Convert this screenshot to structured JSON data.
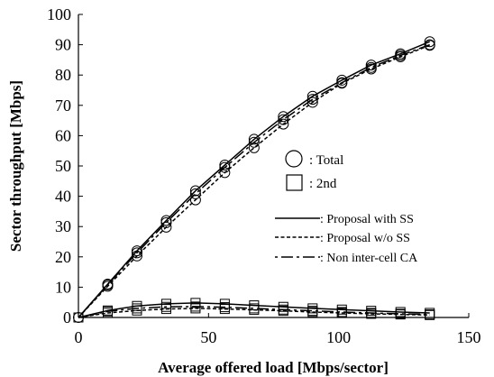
{
  "chart_data": {
    "type": "line",
    "title": "",
    "xlabel": "Average offered load [Mbps/sector]",
    "ylabel": "Sector throughput  [Mbps]",
    "xlim": [
      0,
      150
    ],
    "ylim": [
      0,
      100
    ],
    "xticks": [
      "0",
      "50",
      "100",
      "150"
    ],
    "yticks": [
      "0",
      "10",
      "20",
      "30",
      "40",
      "50",
      "60",
      "70",
      "80",
      "90",
      "100"
    ],
    "grid": false,
    "x": [
      0,
      11.25,
      22.5,
      33.75,
      45,
      56.25,
      67.5,
      78.75,
      90,
      101.25,
      112.5,
      123.75,
      135
    ],
    "marker_legend": [
      {
        "marker": "circle",
        "label": ": Total"
      },
      {
        "marker": "square",
        "label": ": 2nd"
      }
    ],
    "line_legend": [
      {
        "style": "solid",
        "label": ": Proposal with SS"
      },
      {
        "style": "dashed",
        "label": ": Proposal w/o SS"
      },
      {
        "style": "dashdot",
        "label": ": Non inter-cell CA"
      }
    ],
    "series": [
      {
        "name": "Total",
        "style": "solid",
        "marker": "circle",
        "values": [
          0,
          11.0,
          22.0,
          32.0,
          41.8,
          50.3,
          58.8,
          66.3,
          73.0,
          78.3,
          83.3,
          87.0,
          91.0
        ]
      },
      {
        "name": "Total",
        "style": "dashed",
        "marker": "circle",
        "values": [
          0,
          10.3,
          20.3,
          29.8,
          38.8,
          47.8,
          56.0,
          63.8,
          71.0,
          77.3,
          82.0,
          86.0,
          89.8
        ]
      },
      {
        "name": "Total",
        "style": "dashdot",
        "marker": "circle",
        "values": [
          0,
          10.8,
          21.3,
          31.3,
          40.8,
          49.5,
          57.8,
          65.3,
          72.0,
          77.5,
          82.5,
          86.5,
          90.0
        ]
      },
      {
        "name": "2nd",
        "style": "solid",
        "marker": "square",
        "values": [
          0,
          2.3,
          3.8,
          4.5,
          4.8,
          4.5,
          4.0,
          3.5,
          3.0,
          2.6,
          2.2,
          1.8,
          1.5
        ]
      },
      {
        "name": "2nd",
        "style": "dashed",
        "marker": "square",
        "values": [
          0,
          1.5,
          2.3,
          2.8,
          3.0,
          2.8,
          2.5,
          2.2,
          1.8,
          1.5,
          1.2,
          1.0,
          0.8
        ]
      },
      {
        "name": "2nd",
        "style": "dashdot",
        "marker": "square",
        "values": [
          0,
          2.0,
          3.0,
          3.5,
          3.6,
          3.4,
          3.0,
          2.6,
          2.2,
          1.8,
          1.5,
          1.2,
          1.0
        ]
      }
    ]
  }
}
